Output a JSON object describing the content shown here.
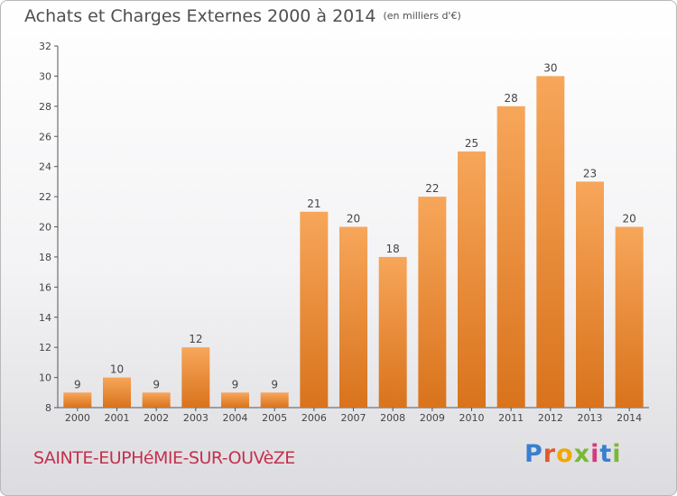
{
  "header": {
    "title": "Achats et Charges Externes 2000 à 2014",
    "unit": "(en milliers d'€)"
  },
  "footer": {
    "commune": "SAINTE-EUPHéMIE-SUR-OUVèZE",
    "logo": {
      "letters": [
        "P",
        "r",
        "o",
        "x",
        "i",
        "t",
        "i"
      ],
      "colors": [
        "#3a7fd0",
        "#e05a2b",
        "#f0a800",
        "#7ab838",
        "#d63a7a",
        "#3a7fd0",
        "#7ab838"
      ]
    }
  },
  "chart_data": {
    "type": "bar",
    "title": "Achats et Charges Externes 2000 à 2014",
    "subtitle": "(en milliers d'€)",
    "xlabel": "",
    "ylabel": "",
    "categories": [
      "2000",
      "2001",
      "2002",
      "2003",
      "2004",
      "2005",
      "2006",
      "2007",
      "2008",
      "2009",
      "2010",
      "2011",
      "2012",
      "2013",
      "2014"
    ],
    "values": [
      9,
      10,
      9,
      12,
      9,
      9,
      21,
      20,
      18,
      22,
      25,
      28,
      30,
      23,
      20
    ],
    "ylim": [
      8,
      32
    ],
    "yticks": [
      8,
      10,
      12,
      14,
      16,
      18,
      20,
      22,
      24,
      26,
      28,
      30,
      32
    ],
    "grid": false,
    "legend": "none",
    "bar_color_top": "#f7a65a",
    "bar_color_bottom": "#d9731c"
  }
}
